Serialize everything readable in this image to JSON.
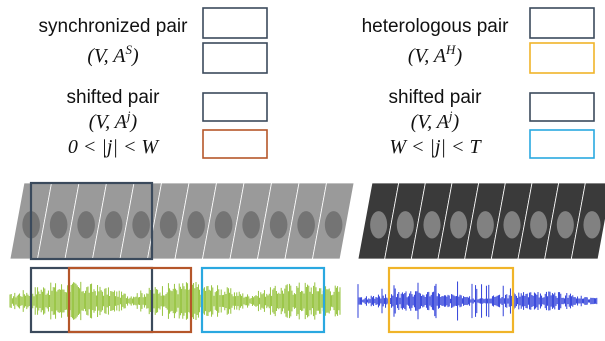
{
  "legend": {
    "left": {
      "synchronized_label": "synchronized pair",
      "synchronized_math": "(V, A",
      "synchronized_sup": "S",
      "shifted_label": "shifted pair",
      "shifted_math": "(V, A",
      "shifted_sup": "j",
      "shifted_condition": "0 < |j| < W"
    },
    "right": {
      "heterologous_label": "heterologous pair",
      "heterologous_math": "(V, A",
      "heterologous_sup": "H",
      "shifted_label": "shifted pair",
      "shifted_math": "(V, A",
      "shifted_sup": "j",
      "shifted_condition": "W < |j| < T"
    }
  },
  "colors": {
    "synchronized": "#3b4a5c",
    "shifted_near": "#b5562a",
    "heterologous": "#f0b429",
    "shifted_far": "#2aa8e0",
    "audio_left": "#8bbd2a",
    "audio_right": "#1a2cd6",
    "frames_left": "#9a9a9a",
    "frames_right": "#3a3a3a"
  },
  "panels": {
    "left": {
      "frames": "face-video-frames",
      "audio": "audio-waveform-green"
    },
    "right": {
      "frames": "face-video-frames",
      "audio": "audio-waveform-blue"
    }
  }
}
